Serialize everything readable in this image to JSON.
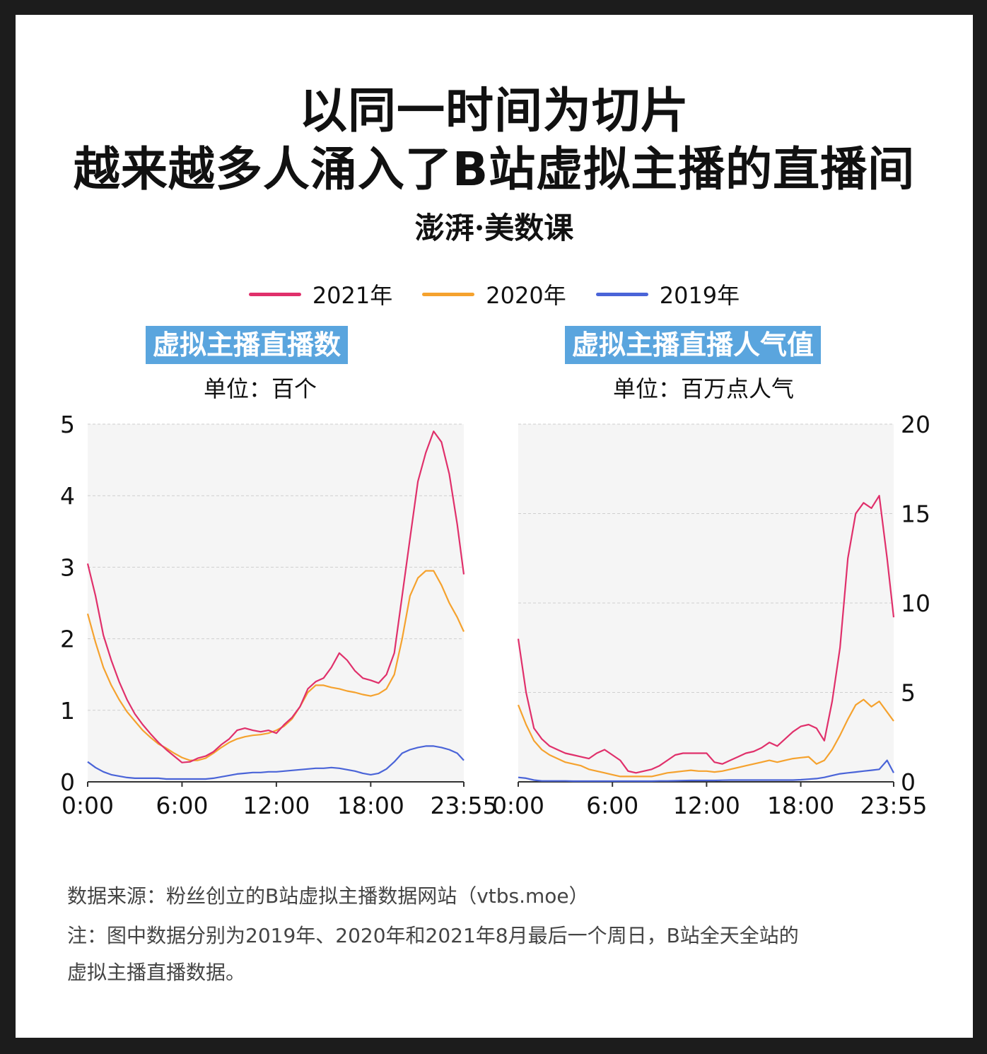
{
  "header": {
    "title_line1": "以同一时间为切片",
    "title_line2": "越来越多人涌入了B站虚拟主播的直播间",
    "logo_text": "澎湃·美数课"
  },
  "legend": [
    {
      "label": "2021年",
      "color": "#e0306b"
    },
    {
      "label": "2020年",
      "color": "#f5a22e"
    },
    {
      "label": "2019年",
      "color": "#4a64d8"
    }
  ],
  "footer": {
    "source": "数据来源：粉丝创立的B站虚拟主播数据网站（vtbs.moe）",
    "note_line1": "注：图中数据分别为2019年、2020年和2021年8月最后一个周日，B站全天全站的",
    "note_line2": "虚拟主播直播数据。"
  },
  "chart_data": [
    {
      "type": "line",
      "title": "虚拟主播直播数",
      "unit": "单位：百个",
      "x_ticks": [
        "0:00",
        "6:00",
        "12:00",
        "18:00",
        "23:55"
      ],
      "x_tick_values": [
        0,
        6,
        12,
        18,
        23.92
      ],
      "y_ticks": [
        0,
        1,
        2,
        3,
        4,
        5
      ],
      "ylim": [
        0,
        5
      ],
      "xlim": [
        0,
        23.92
      ],
      "y_axis_side": "left",
      "grid": true,
      "series": [
        {
          "name": "2021年",
          "color": "#e0306b",
          "x": [
            0,
            0.5,
            1,
            1.5,
            2,
            2.5,
            3,
            3.5,
            4,
            4.5,
            5,
            5.5,
            6,
            6.5,
            7,
            7.5,
            8,
            8.5,
            9,
            9.5,
            10,
            10.5,
            11,
            11.5,
            12,
            12.5,
            13,
            13.5,
            14,
            14.5,
            15,
            15.5,
            16,
            16.5,
            17,
            17.5,
            18,
            18.5,
            19,
            19.5,
            20,
            20.5,
            21,
            21.5,
            22,
            22.5,
            23,
            23.5,
            23.92
          ],
          "y": [
            3.05,
            2.6,
            2.05,
            1.7,
            1.4,
            1.15,
            0.95,
            0.8,
            0.67,
            0.55,
            0.45,
            0.36,
            0.27,
            0.28,
            0.33,
            0.36,
            0.42,
            0.52,
            0.6,
            0.72,
            0.75,
            0.72,
            0.7,
            0.72,
            0.68,
            0.8,
            0.9,
            1.05,
            1.3,
            1.4,
            1.45,
            1.6,
            1.8,
            1.7,
            1.55,
            1.45,
            1.42,
            1.38,
            1.5,
            1.8,
            2.6,
            3.4,
            4.2,
            4.6,
            4.9,
            4.75,
            4.3,
            3.6,
            2.9
          ]
        },
        {
          "name": "2020年",
          "color": "#f5a22e",
          "x": [
            0,
            0.5,
            1,
            1.5,
            2,
            2.5,
            3,
            3.5,
            4,
            4.5,
            5,
            5.5,
            6,
            6.5,
            7,
            7.5,
            8,
            8.5,
            9,
            9.5,
            10,
            10.5,
            11,
            11.5,
            12,
            12.5,
            13,
            13.5,
            14,
            14.5,
            15,
            15.5,
            16,
            16.5,
            17,
            17.5,
            18,
            18.5,
            19,
            19.5,
            20,
            20.5,
            21,
            21.5,
            22,
            22.5,
            23,
            23.5,
            23.92
          ],
          "y": [
            2.35,
            1.95,
            1.6,
            1.35,
            1.15,
            0.98,
            0.85,
            0.72,
            0.62,
            0.53,
            0.47,
            0.4,
            0.34,
            0.3,
            0.3,
            0.33,
            0.4,
            0.48,
            0.55,
            0.6,
            0.63,
            0.65,
            0.66,
            0.68,
            0.72,
            0.78,
            0.88,
            1.05,
            1.25,
            1.35,
            1.35,
            1.32,
            1.3,
            1.27,
            1.25,
            1.22,
            1.2,
            1.23,
            1.3,
            1.5,
            2.0,
            2.6,
            2.85,
            2.95,
            2.95,
            2.75,
            2.5,
            2.3,
            2.1
          ]
        },
        {
          "name": "2019年",
          "color": "#4a64d8",
          "x": [
            0,
            0.5,
            1,
            1.5,
            2,
            2.5,
            3,
            3.5,
            4,
            4.5,
            5,
            5.5,
            6,
            6.5,
            7,
            7.5,
            8,
            8.5,
            9,
            9.5,
            10,
            10.5,
            11,
            11.5,
            12,
            12.5,
            13,
            13.5,
            14,
            14.5,
            15,
            15.5,
            16,
            16.5,
            17,
            17.5,
            18,
            18.5,
            19,
            19.5,
            20,
            20.5,
            21,
            21.5,
            22,
            22.5,
            23,
            23.5,
            23.92
          ],
          "y": [
            0.28,
            0.2,
            0.14,
            0.1,
            0.08,
            0.06,
            0.05,
            0.05,
            0.05,
            0.05,
            0.04,
            0.04,
            0.04,
            0.04,
            0.04,
            0.04,
            0.05,
            0.07,
            0.09,
            0.11,
            0.12,
            0.13,
            0.13,
            0.14,
            0.14,
            0.15,
            0.16,
            0.17,
            0.18,
            0.19,
            0.19,
            0.2,
            0.19,
            0.17,
            0.15,
            0.12,
            0.1,
            0.12,
            0.18,
            0.28,
            0.4,
            0.45,
            0.48,
            0.5,
            0.5,
            0.48,
            0.45,
            0.4,
            0.3
          ]
        }
      ]
    },
    {
      "type": "line",
      "title": "虚拟主播直播人气值",
      "unit": "单位：百万点人气",
      "x_ticks": [
        "0:00",
        "6:00",
        "12:00",
        "18:00",
        "23:55"
      ],
      "x_tick_values": [
        0,
        6,
        12,
        18,
        23.92
      ],
      "y_ticks": [
        0,
        5,
        10,
        15,
        20
      ],
      "ylim": [
        0,
        20
      ],
      "xlim": [
        0,
        23.92
      ],
      "y_axis_side": "right",
      "grid": true,
      "series": [
        {
          "name": "2021年",
          "color": "#e0306b",
          "x": [
            0,
            0.5,
            1,
            1.5,
            2,
            2.5,
            3,
            3.5,
            4,
            4.5,
            5,
            5.5,
            6,
            6.5,
            7,
            7.5,
            8,
            8.5,
            9,
            9.5,
            10,
            10.5,
            11,
            11.5,
            12,
            12.5,
            13,
            13.5,
            14,
            14.5,
            15,
            15.5,
            16,
            16.5,
            17,
            17.5,
            18,
            18.5,
            19,
            19.5,
            20,
            20.5,
            21,
            21.5,
            22,
            22.5,
            23,
            23.5,
            23.92
          ],
          "y": [
            8.0,
            5.0,
            3.0,
            2.4,
            2.0,
            1.8,
            1.6,
            1.5,
            1.4,
            1.3,
            1.6,
            1.8,
            1.5,
            1.2,
            0.6,
            0.5,
            0.6,
            0.7,
            0.9,
            1.2,
            1.5,
            1.6,
            1.6,
            1.6,
            1.6,
            1.1,
            1.0,
            1.2,
            1.4,
            1.6,
            1.7,
            1.9,
            2.2,
            2.0,
            2.4,
            2.8,
            3.1,
            3.2,
            3.0,
            2.3,
            4.5,
            7.5,
            12.5,
            15.0,
            15.6,
            15.3,
            16.0,
            12.5,
            9.2
          ]
        },
        {
          "name": "2020年",
          "color": "#f5a22e",
          "x": [
            0,
            0.5,
            1,
            1.5,
            2,
            2.5,
            3,
            3.5,
            4,
            4.5,
            5,
            5.5,
            6,
            6.5,
            7,
            7.5,
            8,
            8.5,
            9,
            9.5,
            10,
            10.5,
            11,
            11.5,
            12,
            12.5,
            13,
            13.5,
            14,
            14.5,
            15,
            15.5,
            16,
            16.5,
            17,
            17.5,
            18,
            18.5,
            19,
            19.5,
            20,
            20.5,
            21,
            21.5,
            22,
            22.5,
            23,
            23.5,
            23.92
          ],
          "y": [
            4.3,
            3.2,
            2.3,
            1.8,
            1.5,
            1.3,
            1.1,
            1.0,
            0.9,
            0.7,
            0.6,
            0.5,
            0.4,
            0.3,
            0.3,
            0.3,
            0.3,
            0.3,
            0.4,
            0.5,
            0.55,
            0.6,
            0.65,
            0.6,
            0.6,
            0.55,
            0.6,
            0.7,
            0.8,
            0.9,
            1.0,
            1.1,
            1.2,
            1.1,
            1.2,
            1.3,
            1.35,
            1.4,
            1.0,
            1.2,
            1.8,
            2.6,
            3.5,
            4.3,
            4.6,
            4.2,
            4.5,
            3.9,
            3.4
          ]
        },
        {
          "name": "2019年",
          "color": "#4a64d8",
          "x": [
            0,
            0.5,
            1,
            1.5,
            2,
            2.5,
            3,
            3.5,
            4,
            4.5,
            5,
            5.5,
            6,
            6.5,
            7,
            7.5,
            8,
            8.5,
            9,
            9.5,
            10,
            10.5,
            11,
            11.5,
            12,
            12.5,
            13,
            13.5,
            14,
            14.5,
            15,
            15.5,
            16,
            16.5,
            17,
            17.5,
            18,
            18.5,
            19,
            19.5,
            20,
            20.5,
            21,
            21.5,
            22,
            22.5,
            23,
            23.5,
            23.92
          ],
          "y": [
            0.25,
            0.2,
            0.1,
            0.05,
            0.05,
            0.05,
            0.05,
            0.04,
            0.04,
            0.04,
            0.04,
            0.04,
            0.04,
            0.04,
            0.04,
            0.04,
            0.04,
            0.04,
            0.05,
            0.05,
            0.06,
            0.07,
            0.08,
            0.08,
            0.08,
            0.08,
            0.09,
            0.1,
            0.1,
            0.1,
            0.1,
            0.1,
            0.1,
            0.1,
            0.1,
            0.1,
            0.12,
            0.15,
            0.18,
            0.25,
            0.35,
            0.45,
            0.5,
            0.55,
            0.6,
            0.65,
            0.7,
            1.2,
            0.5
          ]
        }
      ]
    }
  ]
}
